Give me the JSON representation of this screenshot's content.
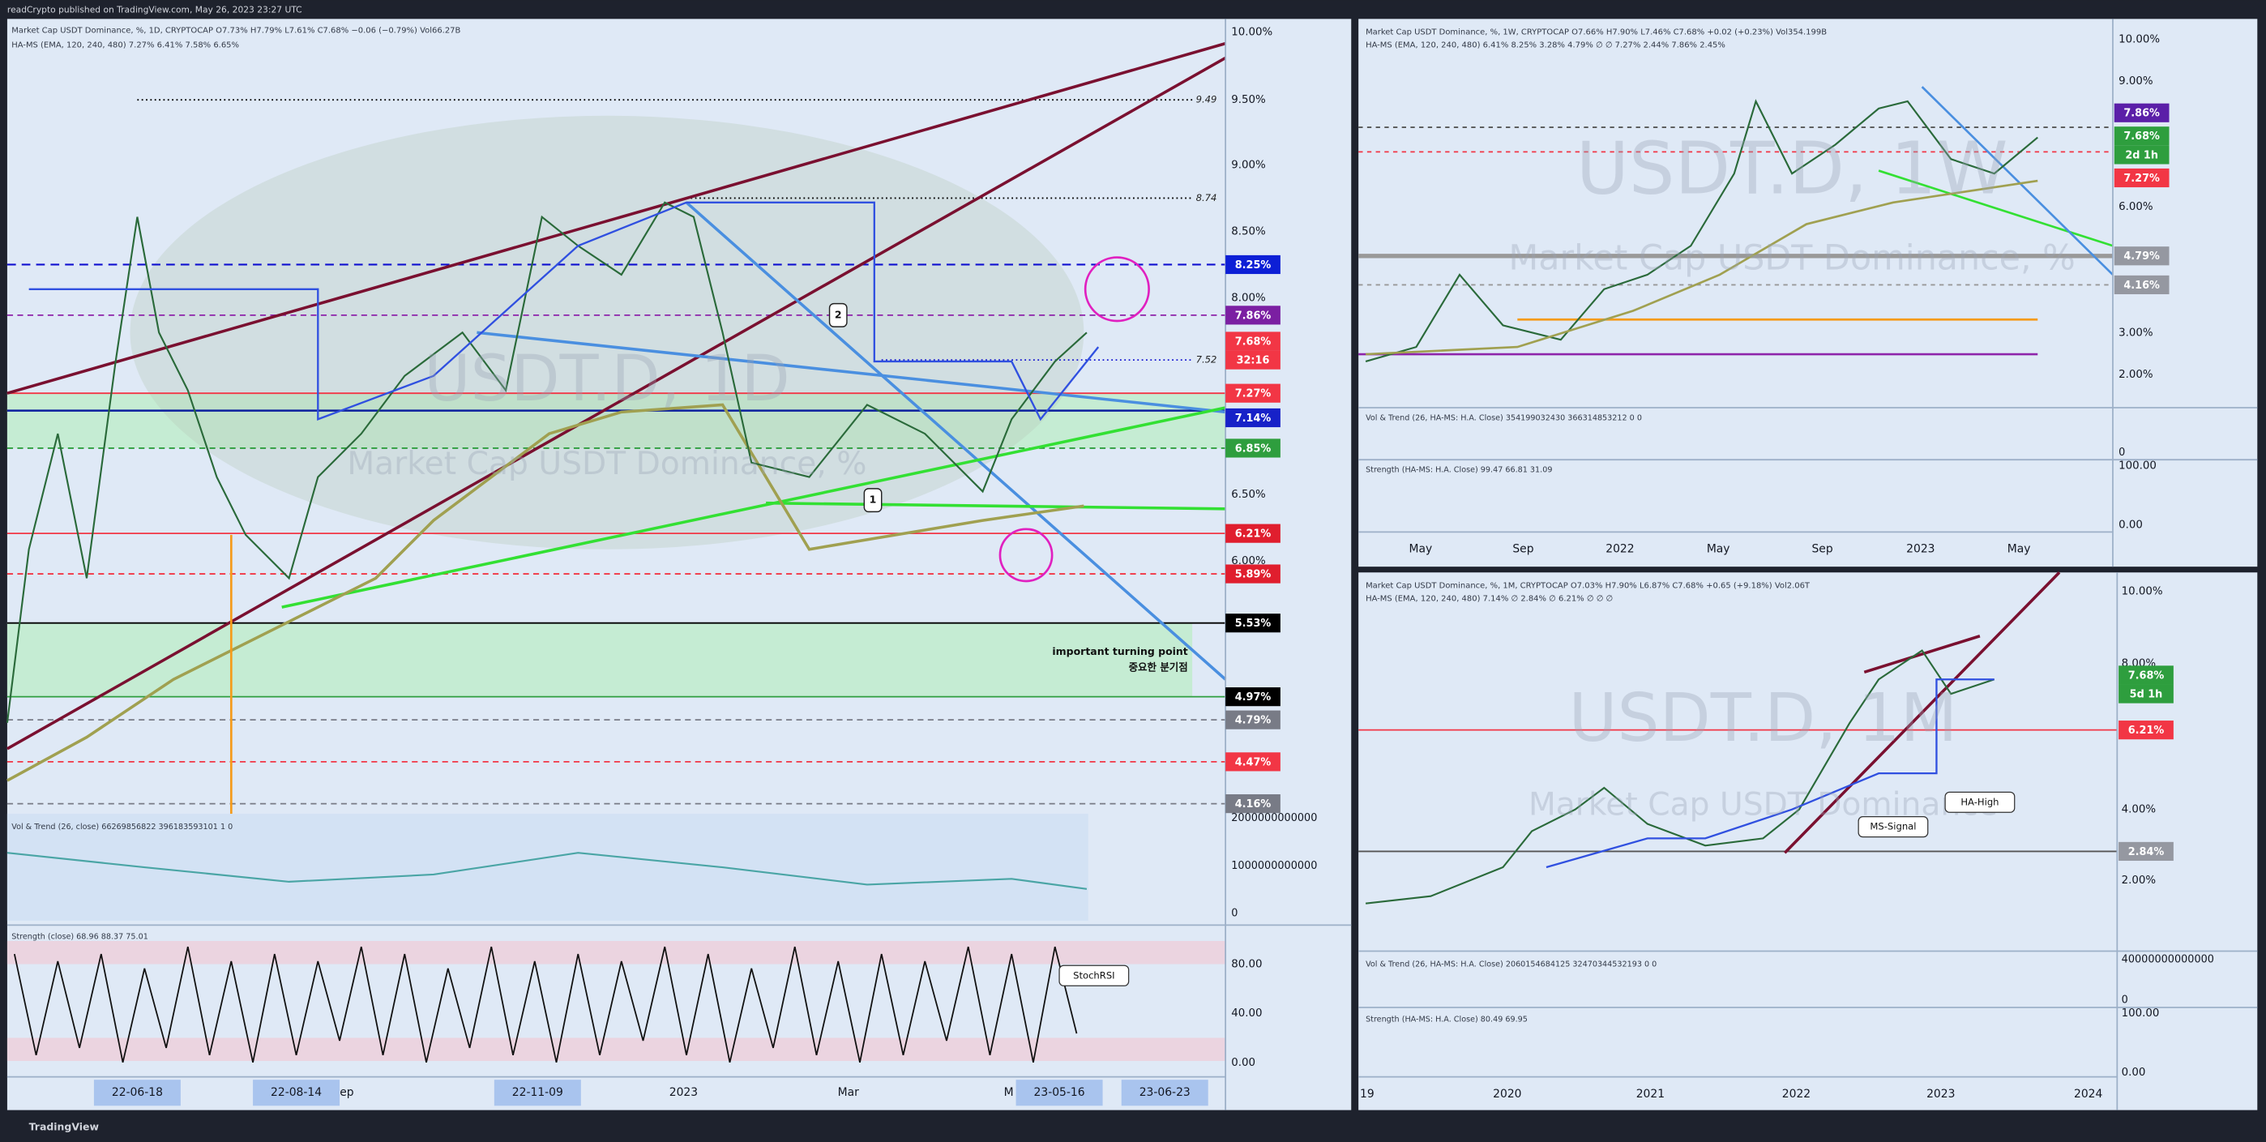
{
  "header": {
    "text": "readCrypto published on TradingView.com, May 26, 2023 23:27 UTC"
  },
  "panels": [
    {
      "legend": [
        "Market Cap USDT Dominance, %, 1D, CRYPTOCAP O7.73% H7.79% L7.61% C7.68% −0.06 (−0.79%) Vol66.27B",
        "HA-MS (EMA, 120, 240, 480) 7.27% 6.41% 7.58% 6.65%"
      ],
      "watermark": [
        "USDT.D, 1D",
        "Market Cap USDT Dominance, %"
      ],
      "price_axis": [
        "10.00%",
        "9.50%",
        "9.00%",
        "8.50%",
        "8.00%",
        "6.50%",
        "6.00%"
      ],
      "tags": [
        {
          "label": "8.25%",
          "color": "#0d1fd6"
        },
        {
          "label": "7.86%",
          "color": "#7b1fa2"
        },
        {
          "label": "7.68%",
          "color": "#f23645"
        },
        {
          "label": "32:16",
          "color": "#f23645"
        },
        {
          "label": "7.27%",
          "color": "#f23645"
        },
        {
          "label": "7.14%",
          "color": "#1721c8"
        },
        {
          "label": "6.85%",
          "color": "#2e9e3e"
        },
        {
          "label": "6.21%",
          "color": "#e01e2e"
        },
        {
          "label": "5.89%",
          "color": "#e01e2e"
        },
        {
          "label": "5.53%",
          "color": "#000000"
        },
        {
          "label": "4.97%",
          "color": "#000000"
        },
        {
          "label": "4.79%",
          "color": "#787b86"
        },
        {
          "label": "4.47%",
          "color": "#f23645"
        },
        {
          "label": "4.16%",
          "color": "#787b86"
        }
      ],
      "level_labels": [
        "9.49",
        "8.74",
        "7.52"
      ],
      "volume_legend": "Vol & Trend (26, close) 66269856822 396183593101 1 0",
      "volume_axis": [
        "2000000000000",
        "1000000000000",
        "0"
      ],
      "strength_legend": "Strength (close) 68.96 88.37 75.01",
      "strength_axis": [
        "80.00",
        "40.00",
        "0.00"
      ],
      "time_axis": [
        "22-06-18",
        "22-08-14",
        "ep",
        "22-11-09",
        "2023",
        "Mar",
        "M",
        "23-05-16",
        "23-06-23"
      ],
      "annotations": [
        "important turning point",
        "중요한 분기점",
        "StochRSI",
        "2",
        "1"
      ]
    },
    {
      "legend": [
        "Market Cap USDT Dominance, %, 1W, CRYPTOCAP O7.66% H7.90% L7.46% C7.68% +0.02 (+0.23%) Vol354.199B",
        "HA-MS (EMA, 120, 240, 480) 6.41% 8.25% 3.28% 4.79% ∅ ∅ 7.27% 2.44% 7.86% 2.45%"
      ],
      "watermark": [
        "USDT.D, 1W",
        "Market Cap USDT Dominance, %"
      ],
      "price_axis": [
        "10.00%",
        "9.00%",
        "6.00%",
        "3.00%",
        "2.00%"
      ],
      "tags": [
        {
          "label": "7.86%",
          "color": "#5b1fa8"
        },
        {
          "label": "7.68%",
          "color": "#2e9e3e"
        },
        {
          "label": "2d 1h",
          "color": "#2e9e3e"
        },
        {
          "label": "7.27%",
          "color": "#f23645"
        },
        {
          "label": "4.79%",
          "color": "#9598a1"
        },
        {
          "label": "4.16%",
          "color": "#9598a1"
        }
      ],
      "volume_legend": "Vol & Trend (26, HA-MS: H.A. Close) 354199032430 366314853212 0 0",
      "volume_axis": [
        "0"
      ],
      "strength_legend": "Strength (HA-MS: H.A. Close) 99.47 66.81 31.09",
      "strength_axis": [
        "100.00",
        "0.00"
      ],
      "time_axis": [
        "May",
        "Sep",
        "2022",
        "May",
        "Sep",
        "2023",
        "May"
      ]
    },
    {
      "legend": [
        "Market Cap USDT Dominance, %, 1M, CRYPTOCAP O7.03% H7.90% L6.87% C7.68% +0.65 (+9.18%) Vol2.06T",
        "HA-MS (EMA, 120, 240, 480) 7.14% ∅ 2.84% ∅ 6.21% ∅ ∅ ∅"
      ],
      "watermark": [
        "USDT.D, 1M",
        "Market Cap USDT Dominance"
      ],
      "price_axis": [
        "10.00%",
        "8.00%",
        "4.00%",
        "2.00%"
      ],
      "tags": [
        {
          "label": "7.68%",
          "color": "#2e9e3e"
        },
        {
          "label": "5d 1h",
          "color": "#2e9e3e"
        },
        {
          "label": "6.21%",
          "color": "#f23645"
        },
        {
          "label": "2.84%",
          "color": "#9598a1"
        }
      ],
      "volume_legend": "Vol & Trend (26, HA-MS: H.A. Close) 2060154684125 32470344532193 0 0",
      "volume_axis": [
        "40000000000000",
        "0"
      ],
      "strength_legend": "Strength (HA-MS: H.A. Close) 80.49 69.95",
      "strength_axis": [
        "100.00",
        "0.00"
      ],
      "time_axis": [
        "19",
        "2020",
        "2021",
        "2022",
        "2023",
        "2024"
      ],
      "annotations": [
        "HA-High",
        "MS-Signal"
      ]
    }
  ],
  "footer": {
    "brand": "TradingView"
  }
}
